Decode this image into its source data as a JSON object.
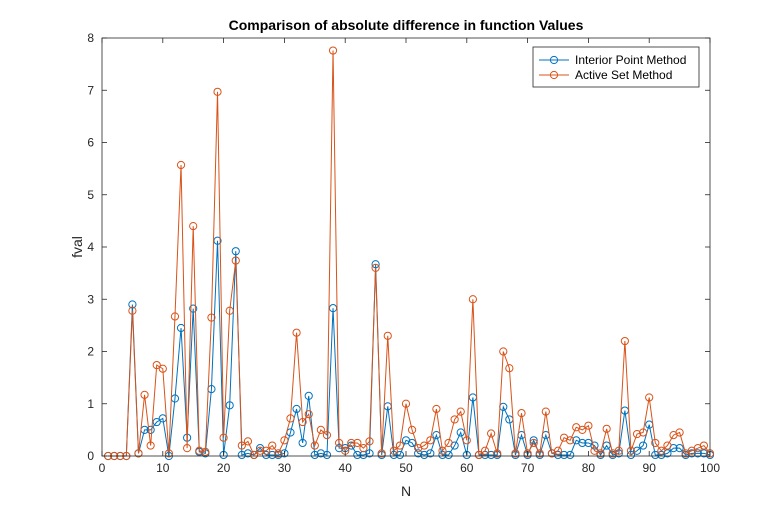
{
  "chart_data": {
    "type": "line",
    "title": "Comparison of absolute difference in function Values",
    "xlabel": "N",
    "ylabel": "fval",
    "xlim": [
      0,
      100
    ],
    "ylim": [
      0,
      8
    ],
    "xticks": [
      0,
      10,
      20,
      30,
      40,
      50,
      60,
      70,
      80,
      90,
      100
    ],
    "yticks": [
      0,
      1,
      2,
      3,
      4,
      5,
      6,
      7,
      8
    ],
    "xtick_labels": [
      "0",
      "10",
      "20",
      "30",
      "40",
      "50",
      "60",
      "70",
      "80",
      "90",
      "100"
    ],
    "ytick_labels": [
      "0",
      "1",
      "2",
      "3",
      "4",
      "5",
      "6",
      "7",
      "8"
    ],
    "grid": false,
    "legend_position": "top-right",
    "marker": "circle-open",
    "x": [
      1,
      2,
      3,
      4,
      5,
      6,
      7,
      8,
      9,
      10,
      11,
      12,
      13,
      14,
      15,
      16,
      17,
      18,
      19,
      20,
      21,
      22,
      23,
      24,
      25,
      26,
      27,
      28,
      29,
      30,
      31,
      32,
      33,
      34,
      35,
      36,
      37,
      38,
      39,
      40,
      41,
      42,
      43,
      44,
      45,
      46,
      47,
      48,
      49,
      50,
      51,
      52,
      53,
      54,
      55,
      56,
      57,
      58,
      59,
      60,
      61,
      62,
      63,
      64,
      65,
      66,
      67,
      68,
      69,
      70,
      71,
      72,
      73,
      74,
      75,
      76,
      77,
      78,
      79,
      80,
      81,
      82,
      83,
      84,
      85,
      86,
      87,
      88,
      89,
      90,
      91,
      92,
      93,
      94,
      95,
      96,
      97,
      98,
      99,
      100
    ],
    "series": [
      {
        "name": "Interior Point Method",
        "color": "#0072BD",
        "values": [
          0,
          0,
          0,
          0,
          2.9,
          0.05,
          0.5,
          0.5,
          0.65,
          0.72,
          0,
          1.1,
          2.45,
          0.35,
          2.82,
          0.08,
          0.05,
          1.28,
          4.12,
          0.02,
          0.97,
          3.92,
          0.02,
          0.05,
          0.02,
          0.15,
          0.02,
          0.02,
          0.02,
          0.05,
          0.45,
          0.9,
          0.25,
          1.15,
          0.02,
          0.05,
          0.02,
          2.83,
          0.15,
          0.15,
          0.2,
          0.02,
          0.02,
          0.05,
          3.67,
          0.02,
          0.95,
          0.02,
          0.02,
          0.3,
          0.25,
          0.05,
          0.02,
          0.05,
          0.4,
          0.02,
          0.02,
          0.2,
          0.45,
          0.02,
          1.12,
          0.02,
          0.02,
          0.02,
          0.02,
          0.94,
          0.7,
          0.02,
          0.4,
          0.02,
          0.3,
          0.02,
          0.4,
          0.05,
          0.02,
          0.02,
          0.02,
          0.3,
          0.25,
          0.25,
          0.2,
          0.02,
          0.2,
          0.02,
          0.05,
          0.87,
          0.02,
          0.1,
          0.2,
          0.6,
          0.02,
          0.02,
          0.05,
          0.15,
          0.15,
          0.02,
          0.05,
          0.05,
          0.05,
          0.02
        ]
      },
      {
        "name": "Active Set Method",
        "color": "#D95319",
        "values": [
          0,
          0,
          0,
          0,
          2.78,
          0.05,
          1.17,
          0.2,
          1.74,
          1.67,
          0.05,
          2.67,
          5.57,
          0.15,
          4.4,
          0.1,
          0.08,
          2.65,
          6.97,
          0.35,
          2.78,
          3.74,
          0.2,
          0.28,
          0.02,
          0.1,
          0.1,
          0.2,
          0.05,
          0.3,
          0.72,
          2.36,
          0.65,
          0.8,
          0.2,
          0.5,
          0.4,
          7.76,
          0.25,
          0.1,
          0.25,
          0.25,
          0.15,
          0.28,
          3.6,
          0.05,
          2.3,
          0.1,
          0.2,
          1.0,
          0.5,
          0.15,
          0.2,
          0.3,
          0.9,
          0.1,
          0.25,
          0.7,
          0.85,
          0.3,
          3.0,
          0.02,
          0.1,
          0.43,
          0.05,
          2.0,
          1.68,
          0.05,
          0.82,
          0.05,
          0.25,
          0.05,
          0.85,
          0.05,
          0.1,
          0.35,
          0.3,
          0.55,
          0.5,
          0.58,
          0.1,
          0.05,
          0.52,
          0.05,
          0.1,
          2.2,
          0.1,
          0.42,
          0.45,
          1.12,
          0.25,
          0.1,
          0.2,
          0.4,
          0.45,
          0.05,
          0.1,
          0.15,
          0.2,
          0.05
        ]
      }
    ]
  }
}
